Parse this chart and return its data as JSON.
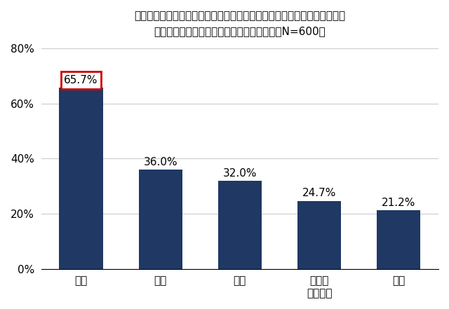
{
  "categories": [
    "警察",
    "母親",
    "友人",
    "公的な\n相談窓口",
    "父親"
  ],
  "values": [
    65.7,
    36.0,
    32.0,
    24.7,
    21.2
  ],
  "bar_color": "#1f3864",
  "title_line1": "今後、もしあなたがストーカー行為の被害に遭った（遭いそうになった）",
  "title_line2": "としたら、誰に相談しますか　（複数回答、N=600）",
  "ylabel": "",
  "ylim": [
    0,
    80
  ],
  "yticks": [
    0,
    20,
    40,
    60,
    80
  ],
  "ytick_labels": [
    "0%",
    "20%",
    "40%",
    "60%",
    "80%"
  ],
  "highlight_bar_index": 0,
  "highlight_color": "#cc0000",
  "background_color": "#ffffff",
  "bar_width": 0.55,
  "label_fontsize": 11,
  "title_fontsize": 11,
  "tick_fontsize": 11
}
